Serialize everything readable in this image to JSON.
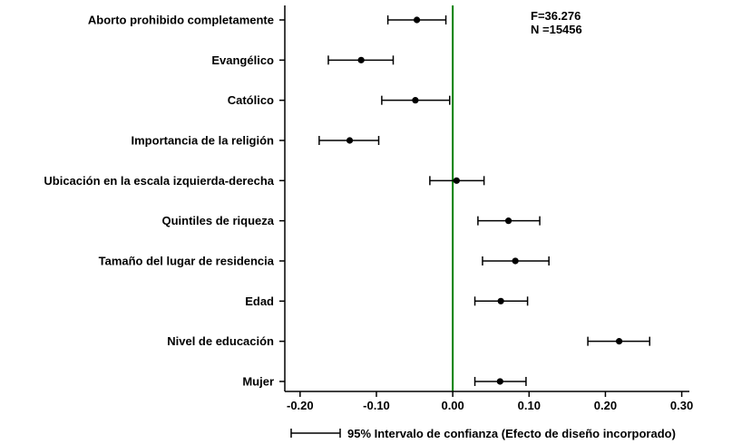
{
  "chart_data": {
    "type": "scatter",
    "subtype": "coefficient plot with 95% confidence intervals",
    "categories": [
      "Aborto prohibido completamente",
      "Evangélico",
      "Católico",
      "Importancia de la religión",
      "Ubicación en la escala izquierda-derecha",
      "Quintiles de riqueza",
      "Tamaño del lugar de residencia",
      "Edad",
      "Nivel de educación",
      "Mujer"
    ],
    "estimates": [
      -0.047,
      -0.12,
      -0.049,
      -0.135,
      0.005,
      0.073,
      0.082,
      0.063,
      0.218,
      0.062
    ],
    "ci_low": [
      -0.085,
      -0.163,
      -0.093,
      -0.175,
      -0.03,
      0.033,
      0.039,
      0.029,
      0.177,
      0.029
    ],
    "ci_high": [
      -0.009,
      -0.078,
      -0.004,
      -0.097,
      0.041,
      0.114,
      0.126,
      0.098,
      0.258,
      0.096
    ],
    "xticks": [
      "-0.20",
      "-0.10",
      "0.00",
      "0.10",
      "0.20",
      "0.30"
    ],
    "xtick_values": [
      -0.2,
      -0.1,
      0.0,
      0.1,
      0.2,
      0.3
    ],
    "xlim": [
      -0.22,
      0.31
    ],
    "reference_line": 0,
    "reference_line_color": "#008000",
    "stats": {
      "f": "F=36.276",
      "n": "N =15456"
    },
    "legend": "95% Intervalo de confianza (Efecto de diseño incorporado)",
    "legend_position": "bottom",
    "grid": false
  }
}
